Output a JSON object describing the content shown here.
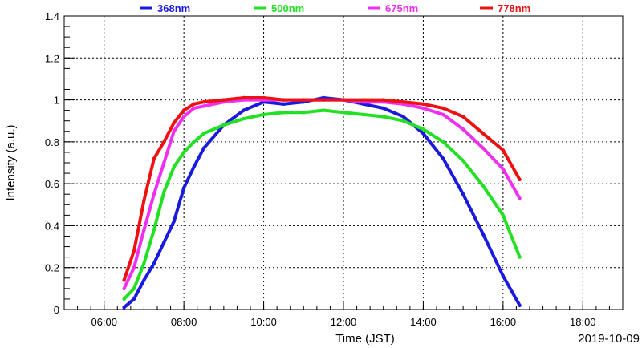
{
  "chart_data": {
    "type": "scatter",
    "title": "",
    "xlabel": "Time (JST)",
    "ylabel": "Intensity (a.u.)",
    "date_label": "2019-10-09",
    "xlim": [
      "05:00",
      "19:00"
    ],
    "ylim": [
      0,
      1.4
    ],
    "x_ticks": [
      "06:00",
      "08:00",
      "10:00",
      "12:00",
      "14:00",
      "16:00",
      "18:00"
    ],
    "y_ticks": [
      "0",
      "0.2",
      "0.4",
      "0.6",
      "0.8",
      "1",
      "1.2",
      "1.4"
    ],
    "grid": true,
    "legend_position": "top",
    "series": [
      {
        "name": "368nm",
        "color": "#1a1adf",
        "points": [
          [
            "06:30",
            0.01
          ],
          [
            "06:45",
            0.05
          ],
          [
            "07:00",
            0.14
          ],
          [
            "07:15",
            0.22
          ],
          [
            "07:30",
            0.32
          ],
          [
            "07:45",
            0.42
          ],
          [
            "08:00",
            0.58
          ],
          [
            "08:15",
            0.68
          ],
          [
            "08:30",
            0.77
          ],
          [
            "09:00",
            0.88
          ],
          [
            "09:30",
            0.95
          ],
          [
            "10:00",
            0.99
          ],
          [
            "10:30",
            0.98
          ],
          [
            "11:00",
            0.99
          ],
          [
            "11:30",
            1.01
          ],
          [
            "12:00",
            1.0
          ],
          [
            "12:30",
            0.98
          ],
          [
            "13:00",
            0.96
          ],
          [
            "13:30",
            0.92
          ],
          [
            "14:00",
            0.84
          ],
          [
            "14:30",
            0.72
          ],
          [
            "15:00",
            0.55
          ],
          [
            "15:30",
            0.36
          ],
          [
            "16:00",
            0.16
          ],
          [
            "16:25",
            0.02
          ]
        ]
      },
      {
        "name": "500nm",
        "color": "#22e022",
        "points": [
          [
            "06:30",
            0.05
          ],
          [
            "06:45",
            0.1
          ],
          [
            "07:00",
            0.22
          ],
          [
            "07:15",
            0.38
          ],
          [
            "07:30",
            0.56
          ],
          [
            "07:45",
            0.68
          ],
          [
            "08:00",
            0.75
          ],
          [
            "08:15",
            0.8
          ],
          [
            "08:30",
            0.84
          ],
          [
            "09:00",
            0.88
          ],
          [
            "09:30",
            0.91
          ],
          [
            "10:00",
            0.93
          ],
          [
            "10:30",
            0.94
          ],
          [
            "11:00",
            0.94
          ],
          [
            "11:30",
            0.95
          ],
          [
            "12:00",
            0.94
          ],
          [
            "12:30",
            0.93
          ],
          [
            "13:00",
            0.92
          ],
          [
            "13:30",
            0.9
          ],
          [
            "14:00",
            0.86
          ],
          [
            "14:30",
            0.8
          ],
          [
            "15:00",
            0.71
          ],
          [
            "15:30",
            0.59
          ],
          [
            "16:00",
            0.45
          ],
          [
            "16:25",
            0.25
          ]
        ]
      },
      {
        "name": "675nm",
        "color": "#f030f0",
        "points": [
          [
            "06:30",
            0.1
          ],
          [
            "06:45",
            0.2
          ],
          [
            "07:00",
            0.38
          ],
          [
            "07:15",
            0.55
          ],
          [
            "07:30",
            0.7
          ],
          [
            "07:45",
            0.85
          ],
          [
            "08:00",
            0.92
          ],
          [
            "08:15",
            0.96
          ],
          [
            "08:30",
            0.97
          ],
          [
            "09:00",
            0.99
          ],
          [
            "09:30",
            1.0
          ],
          [
            "10:00",
            1.0
          ],
          [
            "10:30",
            1.0
          ],
          [
            "11:00",
            1.0
          ],
          [
            "11:30",
            1.0
          ],
          [
            "12:00",
            1.0
          ],
          [
            "12:30",
            0.99
          ],
          [
            "13:00",
            0.99
          ],
          [
            "13:30",
            0.98
          ],
          [
            "14:00",
            0.96
          ],
          [
            "14:30",
            0.93
          ],
          [
            "15:00",
            0.86
          ],
          [
            "15:30",
            0.77
          ],
          [
            "16:00",
            0.67
          ],
          [
            "16:25",
            0.53
          ]
        ]
      },
      {
        "name": "778nm",
        "color": "#ee1111",
        "points": [
          [
            "06:30",
            0.14
          ],
          [
            "06:45",
            0.28
          ],
          [
            "07:00",
            0.52
          ],
          [
            "07:15",
            0.72
          ],
          [
            "07:30",
            0.8
          ],
          [
            "07:45",
            0.89
          ],
          [
            "08:00",
            0.95
          ],
          [
            "08:15",
            0.98
          ],
          [
            "08:30",
            0.99
          ],
          [
            "09:00",
            1.0
          ],
          [
            "09:30",
            1.01
          ],
          [
            "10:00",
            1.01
          ],
          [
            "10:30",
            1.0
          ],
          [
            "11:00",
            1.0
          ],
          [
            "11:30",
            1.0
          ],
          [
            "12:00",
            1.0
          ],
          [
            "12:30",
            1.0
          ],
          [
            "13:00",
            1.0
          ],
          [
            "13:30",
            0.99
          ],
          [
            "14:00",
            0.98
          ],
          [
            "14:30",
            0.96
          ],
          [
            "15:00",
            0.92
          ],
          [
            "15:30",
            0.84
          ],
          [
            "16:00",
            0.76
          ],
          [
            "16:25",
            0.62
          ]
        ]
      }
    ]
  }
}
